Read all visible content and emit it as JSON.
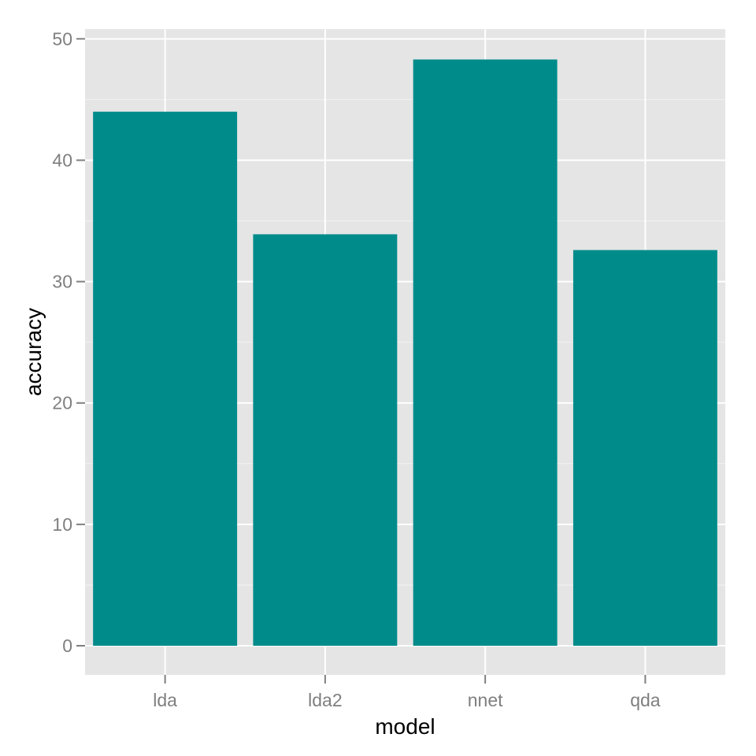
{
  "chart_data": {
    "type": "bar",
    "categories": [
      "lda",
      "lda2",
      "nnet",
      "qda"
    ],
    "values": [
      44,
      33.9,
      48.3,
      32.6
    ],
    "xlabel": "model",
    "ylabel": "accuracy",
    "ylim": [
      -2.4,
      50.8
    ],
    "yticks": [
      0,
      10,
      20,
      30,
      40,
      50
    ],
    "ytick_labels": [
      "0",
      "10",
      "20",
      "30",
      "40",
      "50"
    ],
    "grid": true,
    "legend": "none",
    "colors": {
      "bar": "#008b8b",
      "panel": "#e5e5e5",
      "grid_major": "#ffffff",
      "grid_minor": "#f2f2f2",
      "tick_text": "#7f7f7f",
      "title_text": "#000000"
    }
  }
}
